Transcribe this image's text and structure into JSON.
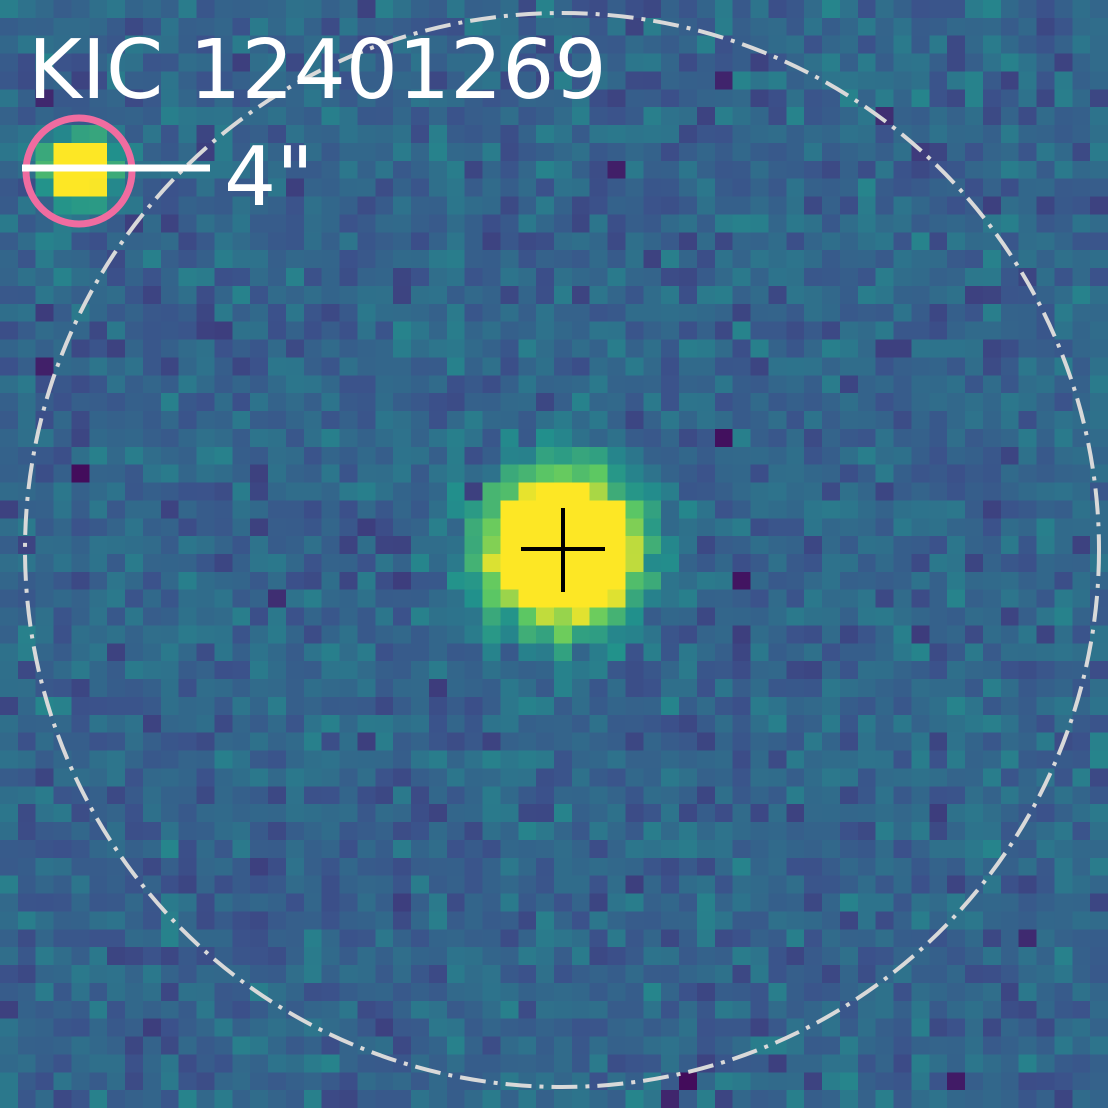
{
  "title": "KIC 12401269",
  "scale_label": "4\""
}
